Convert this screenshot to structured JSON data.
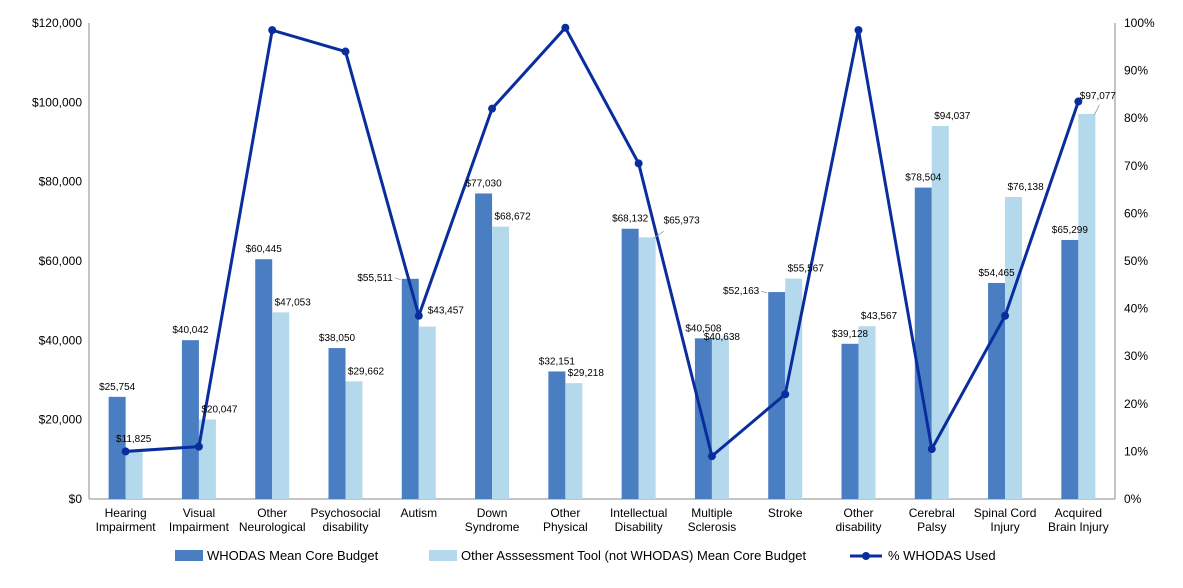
{
  "chart_data": {
    "type": "bar",
    "categories": [
      [
        "Hearing",
        "Impairment"
      ],
      [
        "Visual",
        "Impairment"
      ],
      [
        "Other",
        "Neurological"
      ],
      [
        "Psychosocial",
        "disability"
      ],
      [
        "Autism"
      ],
      [
        "Down",
        "Syndrome"
      ],
      [
        "Other",
        "Physical"
      ],
      [
        "Intellectual",
        "Disability"
      ],
      [
        "Multiple",
        "Sclerosis"
      ],
      [
        "Stroke"
      ],
      [
        "Other",
        "disability"
      ],
      [
        "Cerebral",
        "Palsy"
      ],
      [
        "Spinal Cord",
        "Injury"
      ],
      [
        "Acquired",
        "Brain Injury"
      ]
    ],
    "series": [
      {
        "name": "WHODAS Mean Core Budget",
        "kind": "bar",
        "axis": "left",
        "color": "#4A7EC3",
        "values": [
          25754,
          40042,
          60445,
          38050,
          55511,
          77030,
          32151,
          68132,
          40508,
          52163,
          39128,
          78504,
          54465,
          65299
        ],
        "labels": [
          "$25,754",
          "$40,042",
          "$60,445",
          "$38,050",
          "$55,511",
          "$77,030",
          "$32,151",
          "$68,132",
          "$40,508",
          "$52,163",
          "$39,128",
          "$78,504",
          "$54,465",
          "$65,299"
        ]
      },
      {
        "name": "Other Asssessment Tool (not WHODAS) Mean Core Budget",
        "kind": "bar",
        "axis": "left",
        "color": "#B4D9EC",
        "values": [
          11825,
          20047,
          47053,
          29662,
          43457,
          68672,
          29218,
          65973,
          40638,
          55567,
          43567,
          94037,
          76138,
          97077
        ],
        "labels": [
          "$11,825",
          "$20,047",
          "$47,053",
          "$29,662",
          "$43,457",
          "$68,672",
          "$29,218",
          "$65,973",
          "$40,638",
          "$55,567",
          "$43,567",
          "$94,037",
          "$76,138",
          "$97,077"
        ]
      },
      {
        "name": "% WHODAS Used",
        "kind": "line",
        "axis": "right",
        "color": "#0A2D9E",
        "values": [
          10,
          11,
          98.5,
          94,
          38.5,
          82,
          99,
          70.5,
          9,
          22,
          98.5,
          10.5,
          38.5,
          83.5
        ]
      }
    ],
    "y_left": {
      "ylim": [
        0,
        120000
      ],
      "ticks": [
        0,
        20000,
        40000,
        60000,
        80000,
        100000,
        120000
      ],
      "tick_labels": [
        "$0",
        "$20,000",
        "$40,000",
        "$60,000",
        "$80,000",
        "$100,000",
        "$120,000"
      ]
    },
    "y_right": {
      "ylim": [
        0,
        100
      ],
      "ticks": [
        0,
        10,
        20,
        30,
        40,
        50,
        60,
        70,
        80,
        90,
        100
      ],
      "tick_labels": [
        "0%",
        "10%",
        "20%",
        "30%",
        "40%",
        "50%",
        "60%",
        "70%",
        "80%",
        "90%",
        "100%"
      ]
    },
    "grid": false,
    "legend_position": "bottom",
    "legend": [
      "WHODAS Mean Core Budget",
      "Other Asssessment Tool (not WHODAS) Mean Core Budget",
      "% WHODAS Used"
    ]
  }
}
